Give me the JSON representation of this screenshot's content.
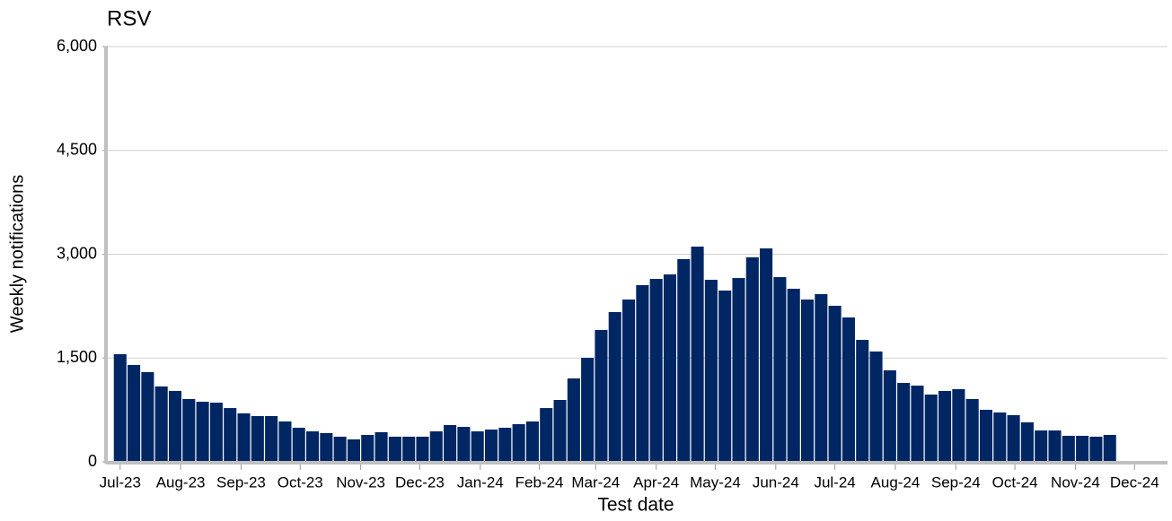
{
  "chart_data": {
    "type": "bar",
    "title": "RSV",
    "x_label": "Test date",
    "y_label": "Weekly notifications",
    "color": "#002664",
    "grid": true,
    "categories": [
      null,
      null,
      null,
      null,
      null,
      null,
      null,
      null,
      null,
      null,
      null,
      null,
      null,
      null,
      null,
      null,
      null,
      null,
      null,
      null,
      null,
      null,
      null,
      null,
      null,
      null,
      null,
      null,
      null,
      null,
      null,
      null,
      null,
      null,
      null,
      null,
      null,
      null,
      null,
      null,
      null,
      null,
      null,
      null,
      null,
      null,
      null,
      null,
      null,
      null,
      null,
      null,
      null,
      null,
      null,
      null,
      null,
      null,
      null,
      null,
      null,
      null,
      null,
      null,
      null,
      null,
      null,
      null,
      null,
      null,
      null,
      null,
      null
    ],
    "values": [
      1555,
      1400,
      1296,
      1089,
      1024,
      907,
      868,
      855,
      777,
      700,
      661,
      661,
      583,
      492,
      440,
      415,
      363,
      324,
      389,
      428,
      363,
      363,
      363,
      440,
      531,
      505,
      440,
      466,
      492,
      544,
      583,
      777,
      894,
      1205,
      1503,
      1905,
      2164,
      2345,
      2553,
      2643,
      2708,
      2929,
      3110,
      2630,
      2475,
      2656,
      2955,
      3084,
      2669,
      2501,
      2345,
      2423,
      2255,
      2086,
      1762,
      1594,
      1322,
      1140,
      1101,
      972,
      1024,
      1050,
      907,
      752,
      713,
      674,
      570,
      453,
      453,
      376,
      376,
      363,
      389
    ],
    "xlim": [
      -0.9,
      76.2
    ],
    "xticks": [
      {
        "value": 0,
        "label": "Jul-23"
      },
      {
        "value": 4.4,
        "label": "Aug-23"
      },
      {
        "value": 8.8,
        "label": "Sep-23"
      },
      {
        "value": 13.1,
        "label": "Oct-23"
      },
      {
        "value": 17.5,
        "label": "Nov-23"
      },
      {
        "value": 21.8,
        "label": "Dec-23"
      },
      {
        "value": 26.2,
        "label": "Jan-24"
      },
      {
        "value": 30.5,
        "label": "Feb-24"
      },
      {
        "value": 34.6,
        "label": "Mar-24"
      },
      {
        "value": 39.0,
        "label": "Apr-24"
      },
      {
        "value": 43.3,
        "label": "May-24"
      },
      {
        "value": 47.7,
        "label": "Jun-24"
      },
      {
        "value": 52.0,
        "label": "Jul-24"
      },
      {
        "value": 56.4,
        "label": "Aug-24"
      },
      {
        "value": 60.8,
        "label": "Sep-24"
      },
      {
        "value": 65.1,
        "label": "Oct-24"
      },
      {
        "value": 69.5,
        "label": "Nov-24"
      },
      {
        "value": 73.8,
        "label": "Dec-24"
      }
    ],
    "ylim": [
      0,
      6000
    ],
    "yticks": [
      0,
      {
        "value": 1500,
        "label": "1,500"
      },
      {
        "value": 3000,
        "label": "3,000"
      },
      {
        "value": 4500,
        "label": "4,500"
      },
      {
        "value": 6000,
        "label": "6,000"
      }
    ]
  }
}
